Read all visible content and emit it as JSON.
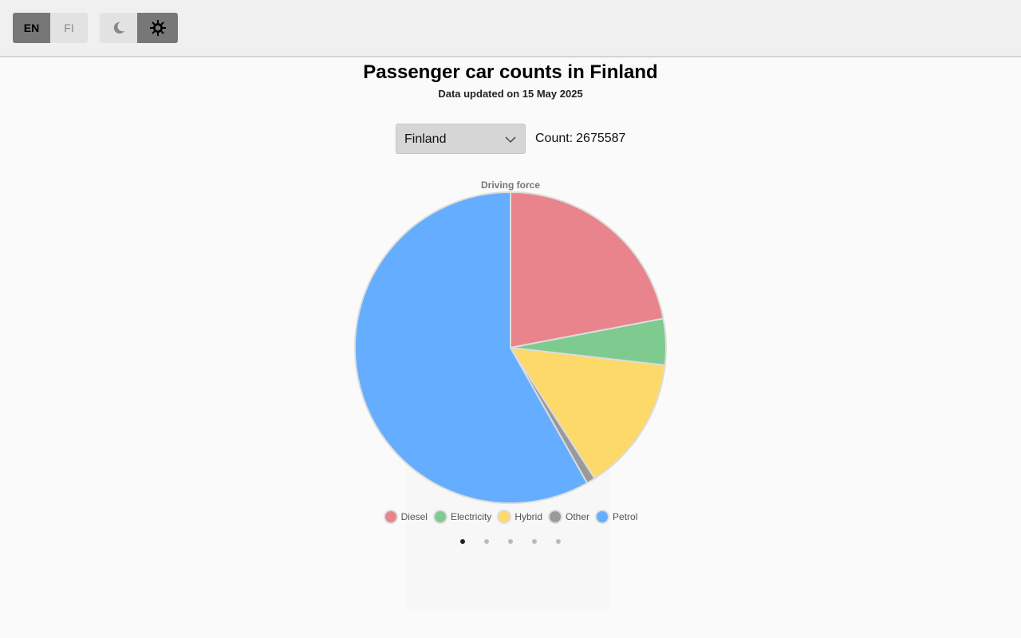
{
  "language": {
    "options": [
      "EN",
      "FI"
    ],
    "active": "EN"
  },
  "theme": {
    "dark_icon": "moon-icon",
    "light_icon": "sun-gear-icon",
    "active": "light"
  },
  "header": {
    "title": "Passenger car counts in Finland",
    "subtitle": "Data updated on 15 May 2025"
  },
  "region": {
    "selected": "Finland"
  },
  "count": {
    "label": "Count:",
    "value": "2675587"
  },
  "chart_data": {
    "type": "pie",
    "title": "Driving force",
    "categories": [
      "Diesel",
      "Electricity",
      "Hybrid",
      "Other",
      "Petrol"
    ],
    "values": [
      22.0,
      4.8,
      14.1,
      0.9,
      58.2
    ],
    "colors": [
      "#e9848c",
      "#7fca8f",
      "#fdd96a",
      "#9a9a9a",
      "#64adff"
    ],
    "legend_position": "bottom"
  },
  "pager": {
    "count": 5,
    "active": 0
  }
}
